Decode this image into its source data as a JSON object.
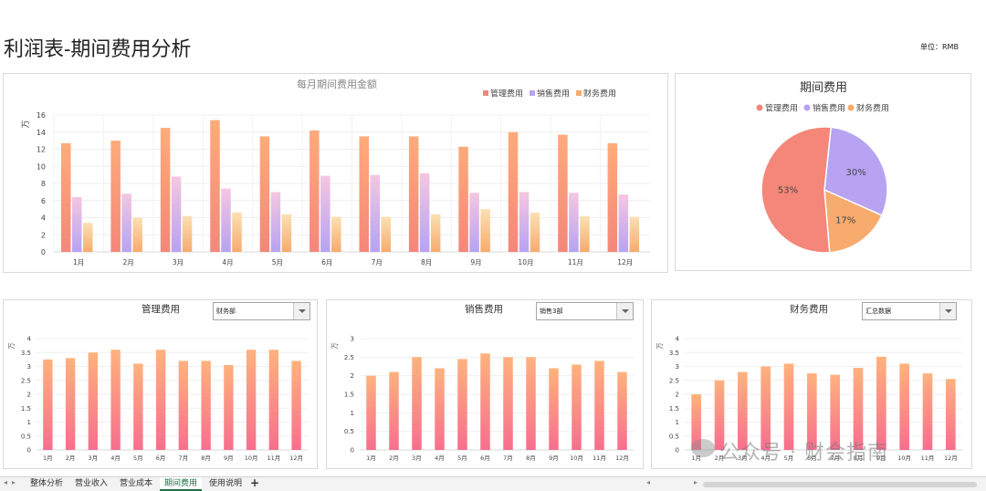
{
  "title": "利润表-期间费用分析",
  "unit_label": "单位：RMB",
  "colors": {
    "admin": "#f4877a",
    "admin_light": "#ffab7a",
    "sales": "#b7a3f2",
    "sales_light": "#f5c6e0",
    "finance": "#f7ab6d",
    "finance_light": "#fbe0b3",
    "bar_top": "#ffb27d",
    "bar_bottom": "#f76f8e"
  },
  "monthly_chart": {
    "title": "每月期间费用金额",
    "y_unit": "万",
    "legend": [
      "管理费用",
      "销售费用",
      "财务费用"
    ],
    "chart_data": {
      "type": "bar",
      "categories": [
        "1月",
        "2月",
        "3月",
        "4月",
        "5月",
        "6月",
        "7月",
        "8月",
        "9月",
        "10月",
        "11月",
        "12月"
      ],
      "series": [
        {
          "name": "管理费用",
          "values": [
            12.7,
            13.0,
            14.5,
            15.4,
            13.5,
            14.2,
            13.5,
            13.5,
            12.3,
            14.0,
            13.7,
            12.7
          ]
        },
        {
          "name": "销售费用",
          "values": [
            6.4,
            6.8,
            8.8,
            7.4,
            7.0,
            8.9,
            9.0,
            9.2,
            6.9,
            7.0,
            6.9,
            6.7
          ]
        },
        {
          "name": "财务费用",
          "values": [
            3.4,
            4.0,
            4.2,
            4.6,
            4.4,
            4.1,
            4.1,
            4.4,
            5.0,
            4.6,
            4.2,
            4.1
          ]
        }
      ],
      "ylim": [
        0,
        16
      ],
      "yticks": [
        0,
        2,
        4,
        6,
        8,
        10,
        12,
        14,
        16
      ],
      "grid": true,
      "legend_position": "top-right"
    }
  },
  "pie_chart": {
    "title": "期间费用",
    "legend": [
      "管理费用",
      "销售费用",
      "财务费用"
    ],
    "chart_data": {
      "type": "pie",
      "labels": [
        "管理费用",
        "销售费用",
        "财务费用"
      ],
      "values": [
        53,
        30,
        17
      ],
      "value_labels": [
        "53%",
        "30%",
        "17%"
      ],
      "legend_position": "top"
    }
  },
  "small_charts": [
    {
      "title": "管理费用",
      "dropdown_value": "财务部",
      "y_unit": "万",
      "chart_data": {
        "type": "bar",
        "categories": [
          "1月",
          "2月",
          "3月",
          "4月",
          "5月",
          "6月",
          "7月",
          "8月",
          "9月",
          "10月",
          "11月",
          "12月"
        ],
        "values": [
          3.25,
          3.3,
          3.5,
          3.6,
          3.1,
          3.6,
          3.2,
          3.2,
          3.05,
          3.6,
          3.6,
          3.2
        ],
        "ylim": [
          0,
          4
        ],
        "yticks": [
          "0",
          "0.5",
          "1",
          "1.5",
          "2",
          "2.5",
          "3",
          "3.5",
          "4"
        ]
      }
    },
    {
      "title": "销售费用",
      "dropdown_value": "销售3部",
      "y_unit": "万",
      "chart_data": {
        "type": "bar",
        "categories": [
          "1月",
          "2月",
          "3月",
          "4月",
          "5月",
          "6月",
          "7月",
          "8月",
          "9月",
          "10月",
          "11月",
          "12月"
        ],
        "values": [
          2.0,
          2.1,
          2.5,
          2.2,
          2.45,
          2.6,
          2.5,
          2.5,
          2.2,
          2.3,
          2.4,
          2.1
        ],
        "ylim": [
          0,
          3
        ],
        "yticks": [
          "0",
          "0.5",
          "1",
          "1.5",
          "2",
          "2.5",
          "3"
        ]
      }
    },
    {
      "title": "财务费用",
      "dropdown_value": "汇总数据",
      "y_unit": "万",
      "chart_data": {
        "type": "bar",
        "categories": [
          "1月",
          "2月",
          "3月",
          "4月",
          "5月",
          "6月",
          "7月",
          "8月",
          "9月",
          "10月",
          "11月",
          "12月"
        ],
        "values": [
          2.0,
          2.5,
          2.8,
          3.0,
          3.1,
          2.75,
          2.7,
          2.95,
          3.35,
          3.1,
          2.75,
          2.55
        ],
        "ylim": [
          0,
          4
        ],
        "yticks": [
          "0",
          "0.5",
          "1",
          "1.5",
          "2",
          "2.5",
          "3",
          "3.5",
          "4"
        ]
      }
    }
  ],
  "tabs": [
    "整体分析",
    "营业收入",
    "营业成本",
    "期间费用",
    "使用说明"
  ],
  "active_tab": "期间费用",
  "add_tab_label": "+",
  "watermark": "公众号 · 财会指南"
}
